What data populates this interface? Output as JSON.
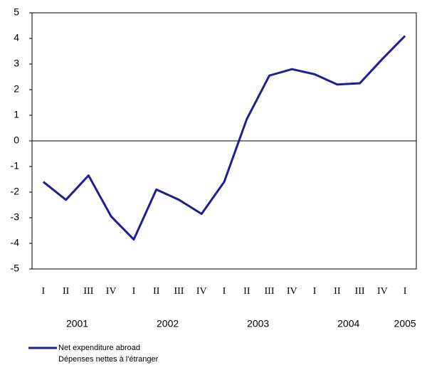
{
  "chart_data": {
    "type": "line",
    "categories": [
      "I",
      "II",
      "III",
      "IV",
      "I",
      "II",
      "III",
      "IV",
      "I",
      "II",
      "III",
      "IV",
      "I",
      "II",
      "III",
      "IV",
      "I"
    ],
    "years": [
      "2001",
      "2002",
      "2003",
      "2004",
      "2005"
    ],
    "series": [
      {
        "name": "Net expenditure abroad",
        "name_fr": "Dépenses nettes à l'étranger",
        "color": "#1f1f8f",
        "values": [
          -1.6,
          -2.3,
          -1.35,
          -2.95,
          -3.85,
          -1.9,
          -2.3,
          -2.85,
          -1.6,
          0.85,
          2.55,
          2.8,
          2.6,
          2.2,
          2.25,
          3.2,
          4.1
        ]
      }
    ],
    "ylim": [
      -5,
      5
    ],
    "yticks": [
      -5,
      -4,
      -3,
      -2,
      -1,
      0,
      1,
      2,
      3,
      4,
      5
    ],
    "zero_line": true
  }
}
